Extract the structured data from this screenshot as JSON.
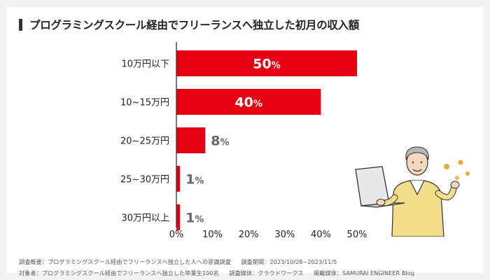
{
  "title": "プログラミングスクール経由でフリーランスへ独立した初月の収入額",
  "colors": {
    "bar": "#e60012",
    "inside_label": "#ffffff",
    "outside_label": "#666666",
    "axis": "#333333",
    "text": "#222222"
  },
  "chart_data": {
    "type": "bar",
    "orientation": "horizontal",
    "categories": [
      "10万円以下",
      "10~15万円",
      "20~25万円",
      "25~30万円",
      "30万円以上"
    ],
    "values": [
      50,
      40,
      8,
      1,
      1
    ],
    "value_labels": [
      {
        "number": "50",
        "unit": "%"
      },
      {
        "number": "40",
        "unit": "%"
      },
      {
        "number": "8",
        "unit": "%"
      },
      {
        "number": "1",
        "unit": "%"
      },
      {
        "number": "1",
        "unit": "%"
      }
    ],
    "xlim": [
      0,
      50
    ],
    "xticks": [
      "0%",
      "10%",
      "20%",
      "30%",
      "40%",
      "50%"
    ],
    "xlabel": "",
    "ylabel": "",
    "grid": false,
    "legend": "none"
  },
  "footnote": {
    "survey_summary": "調査概要：プログラミングスクール経由でフリーランスへ独立した人への意識調査",
    "survey_period": "調査期間：2023/10/26~2023/11/5",
    "target": "対象者：プログラミングスクール経由でフリーランスへ独立した卒業生100名",
    "survey_medium": "調査媒体：クラウドワークス",
    "publication": "掲載媒体：SAMURAI ENGINEER Blog"
  },
  "illustration": {
    "icon": "person-with-laptop-and-coins-icon"
  }
}
